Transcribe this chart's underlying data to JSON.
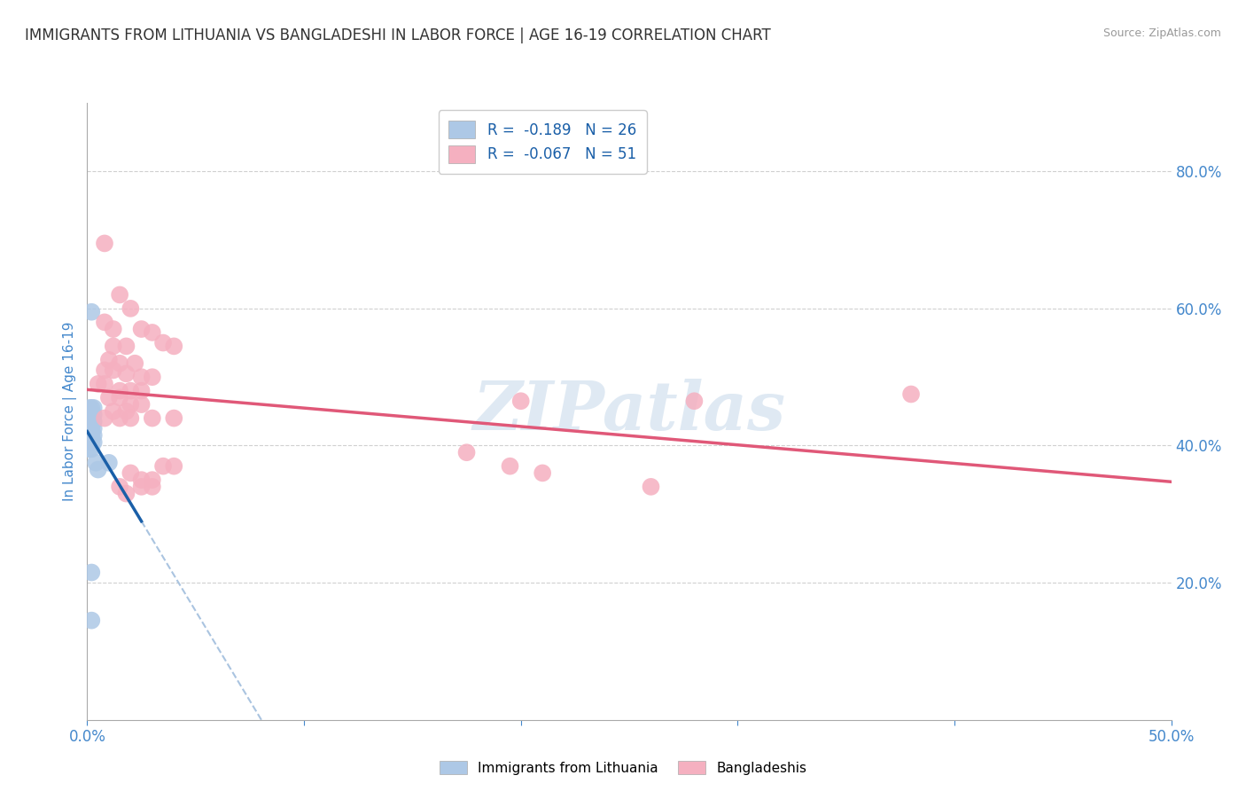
{
  "title": "IMMIGRANTS FROM LITHUANIA VS BANGLADESHI IN LABOR FORCE | AGE 16-19 CORRELATION CHART",
  "source": "Source: ZipAtlas.com",
  "ylabel": "In Labor Force | Age 16-19",
  "xlim": [
    0.0,
    0.5
  ],
  "ylim": [
    0.0,
    0.9
  ],
  "xtick_positions": [
    0.0,
    0.1,
    0.2,
    0.3,
    0.4,
    0.5
  ],
  "xticklabels": [
    "0.0%",
    "",
    "",
    "",
    "",
    "50.0%"
  ],
  "yticks_right": [
    0.2,
    0.4,
    0.6,
    0.8
  ],
  "yticklabels_right": [
    "20.0%",
    "40.0%",
    "60.0%",
    "80.0%"
  ],
  "legend_r1": "R =  -0.189   N = 26",
  "legend_r2": "R =  -0.067   N = 51",
  "legend_label1": "Immigrants from Lithuania",
  "legend_label2": "Bangladeshis",
  "blue_color": "#adc8e6",
  "pink_color": "#f5b0c0",
  "blue_line_color": "#1a5fa8",
  "pink_line_color": "#e05878",
  "dash_color": "#aac4e0",
  "blue_scatter": [
    [
      0.002,
      0.595
    ],
    [
      0.001,
      0.455
    ],
    [
      0.002,
      0.455
    ],
    [
      0.003,
      0.455
    ],
    [
      0.001,
      0.445
    ],
    [
      0.002,
      0.445
    ],
    [
      0.003,
      0.445
    ],
    [
      0.001,
      0.435
    ],
    [
      0.002,
      0.435
    ],
    [
      0.003,
      0.435
    ],
    [
      0.001,
      0.425
    ],
    [
      0.002,
      0.425
    ],
    [
      0.003,
      0.425
    ],
    [
      0.001,
      0.415
    ],
    [
      0.002,
      0.415
    ],
    [
      0.003,
      0.415
    ],
    [
      0.001,
      0.405
    ],
    [
      0.002,
      0.405
    ],
    [
      0.003,
      0.405
    ],
    [
      0.001,
      0.395
    ],
    [
      0.002,
      0.395
    ],
    [
      0.004,
      0.375
    ],
    [
      0.005,
      0.365
    ],
    [
      0.002,
      0.215
    ],
    [
      0.002,
      0.145
    ],
    [
      0.01,
      0.375
    ]
  ],
  "pink_scatter": [
    [
      0.008,
      0.695
    ],
    [
      0.015,
      0.62
    ],
    [
      0.02,
      0.6
    ],
    [
      0.008,
      0.58
    ],
    [
      0.012,
      0.57
    ],
    [
      0.025,
      0.57
    ],
    [
      0.03,
      0.565
    ],
    [
      0.012,
      0.545
    ],
    [
      0.018,
      0.545
    ],
    [
      0.035,
      0.55
    ],
    [
      0.04,
      0.545
    ],
    [
      0.01,
      0.525
    ],
    [
      0.015,
      0.52
    ],
    [
      0.022,
      0.52
    ],
    [
      0.008,
      0.51
    ],
    [
      0.012,
      0.51
    ],
    [
      0.018,
      0.505
    ],
    [
      0.025,
      0.5
    ],
    [
      0.03,
      0.5
    ],
    [
      0.005,
      0.49
    ],
    [
      0.008,
      0.49
    ],
    [
      0.015,
      0.48
    ],
    [
      0.02,
      0.48
    ],
    [
      0.025,
      0.48
    ],
    [
      0.01,
      0.47
    ],
    [
      0.015,
      0.47
    ],
    [
      0.02,
      0.46
    ],
    [
      0.012,
      0.45
    ],
    [
      0.018,
      0.45
    ],
    [
      0.025,
      0.46
    ],
    [
      0.008,
      0.44
    ],
    [
      0.015,
      0.44
    ],
    [
      0.02,
      0.44
    ],
    [
      0.03,
      0.44
    ],
    [
      0.04,
      0.44
    ],
    [
      0.02,
      0.36
    ],
    [
      0.025,
      0.35
    ],
    [
      0.03,
      0.35
    ],
    [
      0.015,
      0.34
    ],
    [
      0.025,
      0.34
    ],
    [
      0.03,
      0.34
    ],
    [
      0.018,
      0.33
    ],
    [
      0.035,
      0.37
    ],
    [
      0.04,
      0.37
    ],
    [
      0.2,
      0.465
    ],
    [
      0.28,
      0.465
    ],
    [
      0.38,
      0.475
    ],
    [
      0.175,
      0.39
    ],
    [
      0.195,
      0.37
    ],
    [
      0.21,
      0.36
    ],
    [
      0.26,
      0.34
    ]
  ],
  "watermark": "ZIPatlas",
  "watermark_color": "#c5d8ea",
  "grid_color": "#d0d0d0",
  "title_color": "#333333",
  "axis_label_color": "#4488cc",
  "tick_color": "#4488cc",
  "blue_line_x_end": 0.025,
  "dash_line_x_start": 0.025,
  "dash_line_x_end": 0.5
}
